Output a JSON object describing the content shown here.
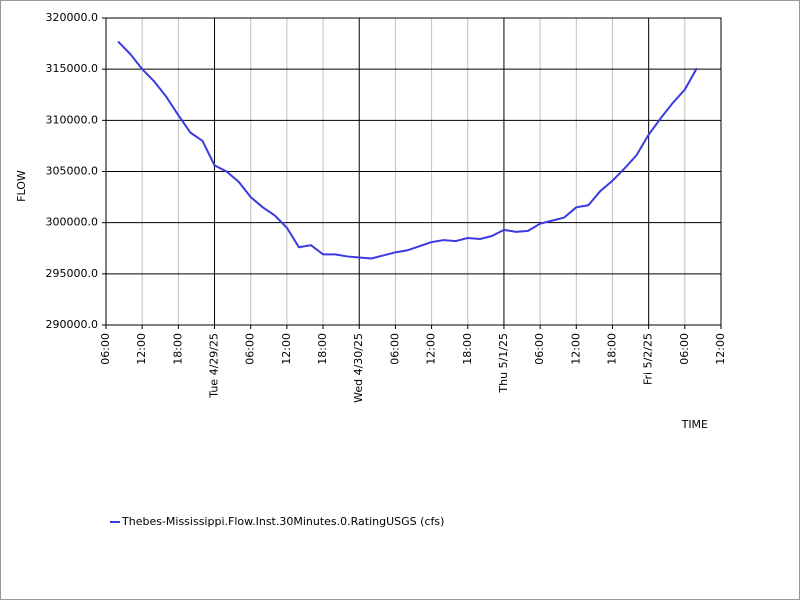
{
  "chart_data": {
    "type": "line",
    "x_label": "TIME",
    "y_label": "FLOW",
    "xlim": [
      "2025-04-28T06:00",
      "2025-05-02T12:00"
    ],
    "xticks": [
      {
        "value": "2025-04-28T06:00",
        "label": "06:00"
      },
      {
        "value": "2025-04-28T12:00",
        "label": "12:00"
      },
      {
        "value": "2025-04-28T18:00",
        "label": "18:00"
      },
      {
        "value": "2025-04-29T00:00",
        "label": "Tue 4/29/25"
      },
      {
        "value": "2025-04-29T06:00",
        "label": "06:00"
      },
      {
        "value": "2025-04-29T12:00",
        "label": "12:00"
      },
      {
        "value": "2025-04-29T18:00",
        "label": "18:00"
      },
      {
        "value": "2025-04-30T00:00",
        "label": "Wed 4/30/25"
      },
      {
        "value": "2025-04-30T06:00",
        "label": "06:00"
      },
      {
        "value": "2025-04-30T12:00",
        "label": "12:00"
      },
      {
        "value": "2025-04-30T18:00",
        "label": "18:00"
      },
      {
        "value": "2025-05-01T00:00",
        "label": "Thu 5/1/25"
      },
      {
        "value": "2025-05-01T06:00",
        "label": "06:00"
      },
      {
        "value": "2025-05-01T12:00",
        "label": "12:00"
      },
      {
        "value": "2025-05-01T18:00",
        "label": "18:00"
      },
      {
        "value": "2025-05-02T00:00",
        "label": "Fri 5/2/25"
      },
      {
        "value": "2025-05-02T06:00",
        "label": "06:00"
      },
      {
        "value": "2025-05-02T12:00",
        "label": "12:00"
      }
    ],
    "ylim": [
      290000,
      320000
    ],
    "yticks": [
      {
        "value": 290000,
        "label": "290000.0"
      },
      {
        "value": 295000,
        "label": "295000.0"
      },
      {
        "value": 300000,
        "label": "300000.0"
      },
      {
        "value": 305000,
        "label": "305000.0"
      },
      {
        "value": 310000,
        "label": "310000.0"
      },
      {
        "value": 315000,
        "label": "315000.0"
      },
      {
        "value": 320000,
        "label": "320000.0"
      }
    ],
    "grid": true,
    "legend": "bottom-left",
    "x": [
      "2025-04-28T08:00",
      "2025-04-28T10:00",
      "2025-04-28T12:00",
      "2025-04-28T14:00",
      "2025-04-28T16:00",
      "2025-04-28T18:00",
      "2025-04-28T20:00",
      "2025-04-28T22:00",
      "2025-04-29T00:00",
      "2025-04-29T02:00",
      "2025-04-29T04:00",
      "2025-04-29T06:00",
      "2025-04-29T08:00",
      "2025-04-29T10:00",
      "2025-04-29T12:00",
      "2025-04-29T14:00",
      "2025-04-29T16:00",
      "2025-04-29T18:00",
      "2025-04-29T20:00",
      "2025-04-29T22:00",
      "2025-04-30T00:00",
      "2025-04-30T02:00",
      "2025-04-30T04:00",
      "2025-04-30T06:00",
      "2025-04-30T08:00",
      "2025-04-30T10:00",
      "2025-04-30T12:00",
      "2025-04-30T14:00",
      "2025-04-30T16:00",
      "2025-04-30T18:00",
      "2025-04-30T20:00",
      "2025-04-30T22:00",
      "2025-05-01T00:00",
      "2025-05-01T02:00",
      "2025-05-01T04:00",
      "2025-05-01T06:00",
      "2025-05-01T08:00",
      "2025-05-01T10:00",
      "2025-05-01T12:00",
      "2025-05-01T14:00",
      "2025-05-01T16:00",
      "2025-05-01T18:00",
      "2025-05-01T20:00",
      "2025-05-01T22:00",
      "2025-05-02T00:00",
      "2025-05-02T02:00",
      "2025-05-02T04:00",
      "2025-05-02T06:00",
      "2025-05-02T08:00"
    ],
    "series": [
      {
        "name": "Thebes-Mississippi.Flow.Inst.30Minutes.0.RatingUSGS (cfs)",
        "color": "#3a3ae0",
        "values": [
          317700,
          316500,
          315000,
          313800,
          312300,
          310500,
          308800,
          308000,
          305600,
          305000,
          304000,
          302500,
          301500,
          300700,
          299500,
          297600,
          297800,
          296900,
          296900,
          296700,
          296600,
          296500,
          296800,
          297100,
          297300,
          297700,
          298100,
          298300,
          298200,
          298500,
          298400,
          298700,
          299300,
          299100,
          299200,
          299900,
          300200,
          300500,
          301500,
          301700,
          303100,
          304100,
          305300,
          306600,
          308600,
          310200,
          311700,
          313000,
          315100
        ]
      }
    ]
  }
}
